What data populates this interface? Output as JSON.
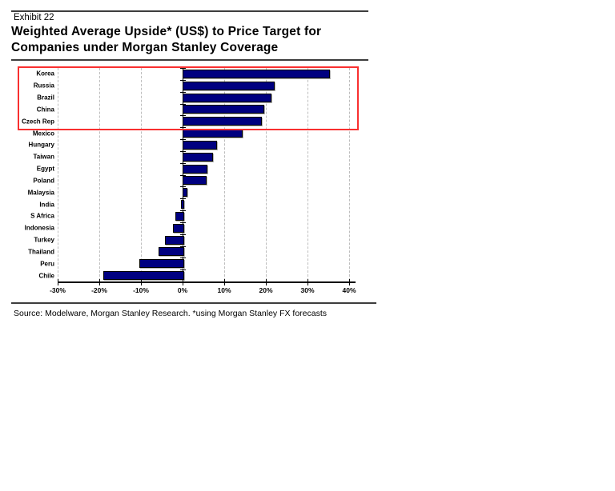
{
  "header": {
    "exhibit_label": "Exhibit 22",
    "title_lines": [
      "Weighted Average Upside* (US$) to Price Target for",
      "Companies under Morgan Stanley Coverage"
    ]
  },
  "chart_data": {
    "type": "bar",
    "orientation": "horizontal",
    "title": "Weighted Average Upside* (US$) to Price Target for Companies under Morgan Stanley Coverage",
    "categories": [
      "Korea",
      "Russia",
      "Brazil",
      "China",
      "Czech Rep",
      "Mexico",
      "Hungary",
      "Taiwan",
      "Egypt",
      "Poland",
      "Malaysia",
      "India",
      "S Africa",
      "Indonesia",
      "Turkey",
      "Thailand",
      "Peru",
      "Chile"
    ],
    "values": [
      35,
      21.7,
      21,
      19.2,
      18.7,
      14.1,
      7.8,
      7,
      5.5,
      5.3,
      0.8,
      -0.4,
      -1.7,
      -2.3,
      -4.3,
      -5.8,
      -10.3,
      -19
    ],
    "unit": "%",
    "xlabel": "",
    "ylabel": "",
    "xlim": [
      -30,
      40
    ],
    "x_ticks": [
      -30,
      -20,
      -10,
      0,
      10,
      20,
      30,
      40
    ],
    "x_tick_labels": [
      "-30%",
      "-20%",
      "-10%",
      "0%",
      "10%",
      "20%",
      "30%",
      "40%"
    ],
    "grid": "dashed-vertical-gridlines",
    "legend": "none",
    "bar_color": "#000080",
    "highlight_box": {
      "categories": [
        "Korea",
        "Russia",
        "Brazil",
        "China",
        "Czech Rep"
      ],
      "color": "#f93030"
    }
  },
  "footer": {
    "source_note": "Source: Modelware, Morgan Stanley Research. *using Morgan Stanley FX forecasts"
  }
}
